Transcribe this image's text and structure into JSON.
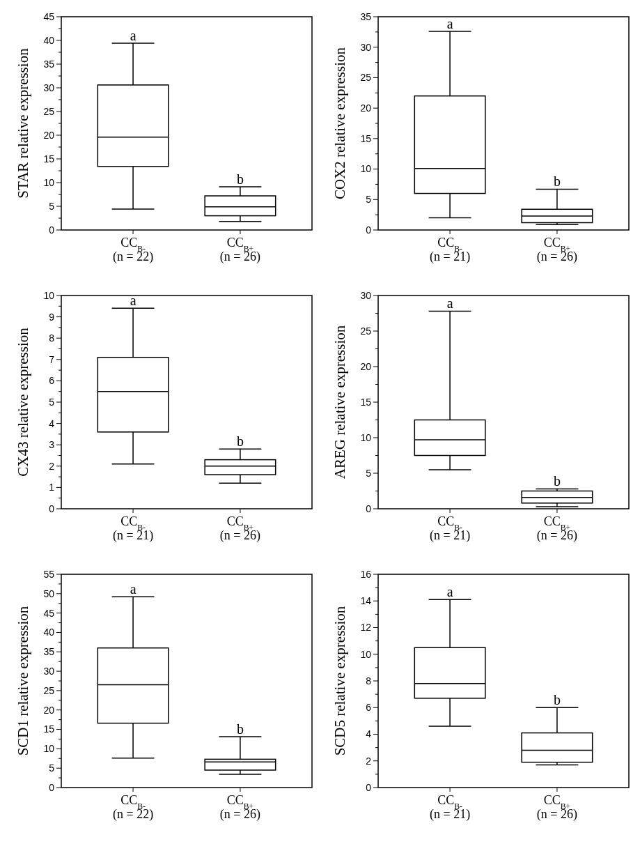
{
  "chart_data": [
    {
      "type": "box",
      "ylabel": "STAR relative expression",
      "categories": [
        "CC$_{B-}$\n(n = 22)",
        "CC$_{B+}$\n(n = 26)"
      ],
      "ylim": [
        0,
        45
      ],
      "yticks": [
        0,
        {
          "value": 2.5,
          "label": null
        },
        5,
        {
          "value": 7.5,
          "label": null
        },
        10,
        {
          "value": 12.5,
          "label": null
        },
        15,
        {
          "value": 17.5,
          "label": null
        },
        20,
        {
          "value": 22.5,
          "label": null
        },
        25,
        {
          "value": 27.5,
          "label": null
        },
        30,
        {
          "value": 32.5,
          "label": null
        },
        35,
        {
          "value": 37.5,
          "label": null
        },
        40,
        {
          "value": 42.5,
          "label": null
        },
        45
      ],
      "color": "#000000",
      "boxes": [
        {
          "low": 4.4,
          "q1": 13.4,
          "median": 19.6,
          "q3": 30.6,
          "high": 39.4
        },
        {
          "low": 1.8,
          "q1": 3.0,
          "median": 4.9,
          "q3": 7.2,
          "high": 9.1
        }
      ],
      "annotations": [
        "a",
        "b"
      ]
    },
    {
      "type": "box",
      "ylabel": "COX2 relative expression",
      "categories": [
        "CC$_{B-}$\n(n = 21)",
        "CC$_{B+}$\n(n = 26)"
      ],
      "ylim": [
        0,
        35
      ],
      "yticks": [
        0,
        {
          "value": 2.5,
          "label": null
        },
        5,
        {
          "value": 7.5,
          "label": null
        },
        10,
        {
          "value": 12.5,
          "label": null
        },
        15,
        {
          "value": 17.5,
          "label": null
        },
        20,
        {
          "value": 22.5,
          "label": null
        },
        25,
        {
          "value": 27.5,
          "label": null
        },
        30,
        {
          "value": 32.5,
          "label": null
        },
        35
      ],
      "color": "#000000",
      "boxes": [
        {
          "low": 2.0,
          "q1": 6.0,
          "median": 10.1,
          "q3": 22.0,
          "high": 32.6
        },
        {
          "low": 0.9,
          "q1": 1.2,
          "median": 2.3,
          "q3": 3.4,
          "high": 6.7
        }
      ],
      "annotations": [
        "a",
        "b"
      ]
    },
    {
      "type": "box",
      "ylabel": "CX43 relative expression",
      "categories": [
        "CC$_{B-}$\n(n = 21)",
        "CC$_{B+}$\n(n = 26)"
      ],
      "ylim": [
        0,
        10
      ],
      "yticks": [
        0,
        {
          "value": 0.5,
          "label": null
        },
        1,
        {
          "value": 1.5,
          "label": null
        },
        2,
        {
          "value": 2.5,
          "label": null
        },
        3,
        {
          "value": 3.5,
          "label": null
        },
        4,
        {
          "value": 4.5,
          "label": null
        },
        5,
        {
          "value": 5.5,
          "label": null
        },
        6,
        {
          "value": 6.5,
          "label": null
        },
        7,
        {
          "value": 7.5,
          "label": null
        },
        8,
        {
          "value": 8.5,
          "label": null
        },
        9,
        {
          "value": 9.5,
          "label": null
        },
        10
      ],
      "color": "#000000",
      "boxes": [
        {
          "low": 2.1,
          "q1": 3.6,
          "median": 5.5,
          "q3": 7.1,
          "high": 9.4
        },
        {
          "low": 1.2,
          "q1": 1.6,
          "median": 2.0,
          "q3": 2.3,
          "high": 2.8
        }
      ],
      "annotations": [
        "a",
        "b"
      ]
    },
    {
      "type": "box",
      "ylabel": "AREG relative expression",
      "categories": [
        "CC$_{B-}$\n(n = 21)",
        "CC$_{B+}$\n(n = 26)"
      ],
      "ylim": [
        0,
        30
      ],
      "yticks": [
        0,
        {
          "value": 2.5,
          "label": null
        },
        5,
        {
          "value": 7.5,
          "label": null
        },
        10,
        {
          "value": 12.5,
          "label": null
        },
        15,
        {
          "value": 17.5,
          "label": null
        },
        20,
        {
          "value": 22.5,
          "label": null
        },
        25,
        {
          "value": 27.5,
          "label": null
        },
        30
      ],
      "color": "#000000",
      "boxes": [
        {
          "low": 5.5,
          "q1": 7.5,
          "median": 9.7,
          "q3": 12.5,
          "high": 27.8
        },
        {
          "low": 0.3,
          "q1": 0.8,
          "median": 1.6,
          "q3": 2.5,
          "high": 2.8
        }
      ],
      "annotations": [
        "a",
        "b"
      ]
    },
    {
      "type": "box",
      "ylabel": "SCD1 relative expression",
      "categories": [
        "CC$_{B-}$\n(n = 22)",
        "CC$_{B+}$\n(n = 26)"
      ],
      "ylim": [
        0,
        55
      ],
      "yticks": [
        0,
        {
          "value": 2.5,
          "label": null
        },
        5,
        {
          "value": 7.5,
          "label": null
        },
        10,
        {
          "value": 12.5,
          "label": null
        },
        15,
        {
          "value": 17.5,
          "label": null
        },
        20,
        {
          "value": 22.5,
          "label": null
        },
        25,
        {
          "value": 27.5,
          "label": null
        },
        30,
        {
          "value": 32.5,
          "label": null
        },
        35,
        {
          "value": 37.5,
          "label": null
        },
        40,
        {
          "value": 42.5,
          "label": null
        },
        45,
        {
          "value": 47.5,
          "label": null
        },
        50,
        {
          "value": 52.5,
          "label": null
        },
        55
      ],
      "color": "#000000",
      "boxes": [
        {
          "low": 7.6,
          "q1": 16.6,
          "median": 26.5,
          "q3": 36.0,
          "high": 49.2
        },
        {
          "low": 3.4,
          "q1": 4.5,
          "median": 6.6,
          "q3": 7.3,
          "high": 13.1
        }
      ],
      "annotations": [
        "a",
        "b"
      ]
    },
    {
      "type": "box",
      "ylabel": "SCD5 relative expression",
      "categories": [
        "CC$_{B-}$\n(n = 21)",
        "CC$_{B+}$\n(n = 26)"
      ],
      "ylim": [
        0,
        16
      ],
      "yticks": [
        0,
        {
          "value": 1,
          "label": null
        },
        2,
        {
          "value": 3,
          "label": null
        },
        4,
        {
          "value": 5,
          "label": null
        },
        6,
        {
          "value": 7,
          "label": null
        },
        8,
        {
          "value": 9,
          "label": null
        },
        10,
        {
          "value": 11,
          "label": null
        },
        12,
        {
          "value": 13,
          "label": null
        },
        14,
        {
          "value": 15,
          "label": null
        },
        16
      ],
      "color": "#000000",
      "boxes": [
        {
          "low": 4.6,
          "q1": 6.7,
          "median": 7.8,
          "q3": 10.5,
          "high": 14.1
        },
        {
          "low": 1.7,
          "q1": 1.9,
          "median": 2.8,
          "q3": 4.1,
          "high": 6.0
        }
      ],
      "annotations": [
        "a",
        "b"
      ]
    }
  ]
}
